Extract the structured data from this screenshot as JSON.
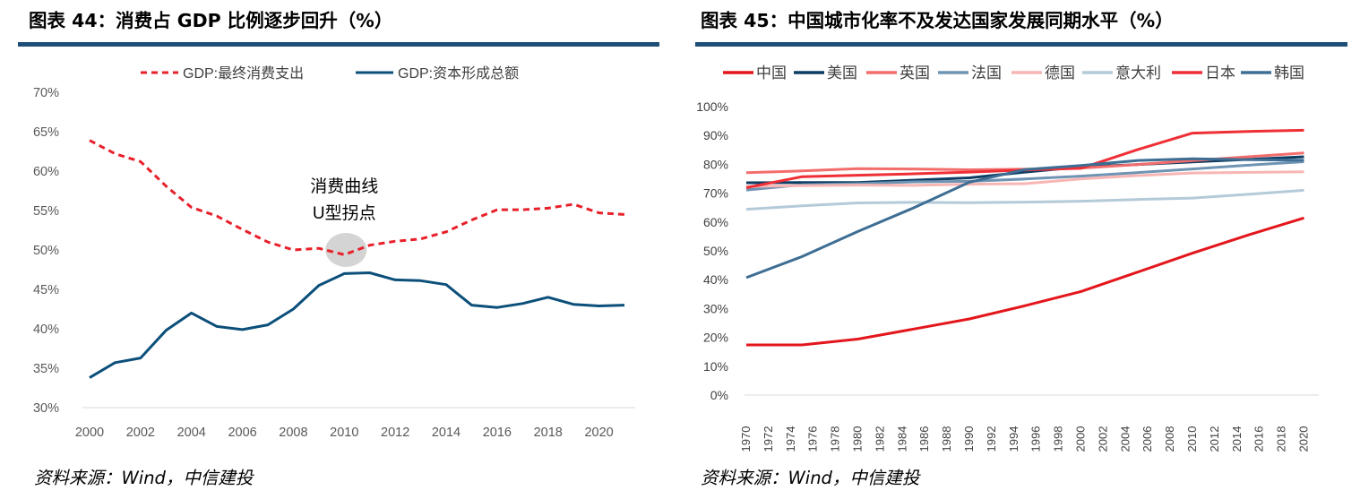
{
  "charts": {
    "left": {
      "title": "图表 44：消费占 GDP 比例逐步回升（%）",
      "source": "资料来源：Wind，中信建投",
      "annotation": [
        "消费曲线",
        "U型拐点"
      ]
    },
    "right": {
      "title": "图表 45：中国城市化率不及发达国家发展同期水平（%）",
      "source": "资料来源：Wind，中信建投"
    }
  },
  "chart_data": [
    {
      "type": "line",
      "title": "消费占 GDP 比例逐步回升（%）",
      "x": [
        2000,
        2001,
        2002,
        2003,
        2004,
        2005,
        2006,
        2007,
        2008,
        2009,
        2010,
        2011,
        2012,
        2013,
        2014,
        2015,
        2016,
        2017,
        2018,
        2019,
        2020,
        2021
      ],
      "x_ticks": [
        2000,
        2002,
        2004,
        2006,
        2008,
        2010,
        2012,
        2014,
        2016,
        2018,
        2020
      ],
      "ylim": [
        30,
        70
      ],
      "y_ticks": [
        30,
        35,
        40,
        45,
        50,
        55,
        60,
        65,
        70
      ],
      "y_format": "percent",
      "grid": false,
      "legend": "top",
      "series": [
        {
          "name": "GDP:最终消费支出",
          "color": "#e8202a",
          "dashed": true,
          "values": [
            63.9,
            62.2,
            61.2,
            58.1,
            55.4,
            54.3,
            52.6,
            51.0,
            50.0,
            50.2,
            49.4,
            50.6,
            51.1,
            51.4,
            52.3,
            53.8,
            55.1,
            55.1,
            55.3,
            55.8,
            54.7,
            54.5
          ]
        },
        {
          "name": "GDP:资本形成总额",
          "color": "#0b4f7a",
          "dashed": false,
          "values": [
            33.8,
            35.7,
            36.3,
            39.8,
            42.0,
            40.3,
            39.9,
            40.5,
            42.5,
            45.5,
            47.0,
            47.1,
            46.2,
            46.1,
            45.6,
            43.0,
            42.7,
            43.2,
            44.0,
            43.1,
            42.9,
            43.0
          ]
        }
      ],
      "annotations": [
        {
          "text": "消费曲线 U型拐点",
          "x": 2010,
          "y": 50
        }
      ]
    },
    {
      "type": "line",
      "title": "中国城市化率不及发达国家发展同期水平（%）",
      "x": [
        1970,
        1975,
        1980,
        1985,
        1990,
        1995,
        2000,
        2005,
        2010,
        2015,
        2020
      ],
      "x_ticks": [
        1970,
        1972,
        1974,
        1976,
        1978,
        1980,
        1982,
        1984,
        1986,
        1988,
        1990,
        1992,
        1994,
        1996,
        1998,
        2000,
        2002,
        2004,
        2006,
        2008,
        2010,
        2012,
        2014,
        2016,
        2018,
        2020
      ],
      "x_max": 2021,
      "ylim": [
        0,
        100
      ],
      "y_ticks": [
        0,
        10,
        20,
        30,
        40,
        50,
        60,
        70,
        80,
        90,
        100
      ],
      "y_format": "percent",
      "grid": false,
      "legend": "top",
      "series": [
        {
          "name": "中国",
          "color": "#e3161c",
          "values": [
            17.4,
            17.4,
            19.4,
            22.9,
            26.4,
            31.0,
            35.9,
            42.5,
            49.2,
            55.5,
            61.4
          ]
        },
        {
          "name": "美国",
          "color": "#0e3d64",
          "values": [
            73.6,
            73.7,
            73.7,
            74.5,
            75.3,
            77.3,
            79.1,
            79.9,
            80.8,
            81.7,
            82.6
          ]
        },
        {
          "name": "英国",
          "color": "#f26d6b",
          "values": [
            77.1,
            77.7,
            78.5,
            78.4,
            78.1,
            78.3,
            78.7,
            79.9,
            81.3,
            82.6,
            83.9
          ]
        },
        {
          "name": "法国",
          "color": "#6f93b3",
          "values": [
            71.1,
            72.9,
            73.3,
            73.9,
            74.1,
            74.9,
            75.9,
            77.1,
            78.4,
            79.7,
            80.9
          ]
        },
        {
          "name": "德国",
          "color": "#f7b6b4",
          "values": [
            72.3,
            72.6,
            72.8,
            72.7,
            73.1,
            73.3,
            74.9,
            76.1,
            77.0,
            77.2,
            77.4
          ]
        },
        {
          "name": "意大利",
          "color": "#b4cad9",
          "values": [
            64.4,
            65.6,
            66.6,
            66.8,
            66.7,
            66.9,
            67.2,
            67.8,
            68.3,
            69.6,
            71.0
          ]
        },
        {
          "name": "日本",
          "color": "#ef2f36",
          "values": [
            71.9,
            75.7,
            76.2,
            76.7,
            77.3,
            78.0,
            78.6,
            85.0,
            90.8,
            91.4,
            91.8
          ]
        },
        {
          "name": "韩国",
          "color": "#3e6e93",
          "values": [
            40.7,
            48.0,
            56.7,
            64.9,
            73.8,
            78.2,
            79.6,
            81.3,
            81.9,
            81.6,
            81.4
          ]
        }
      ]
    }
  ]
}
